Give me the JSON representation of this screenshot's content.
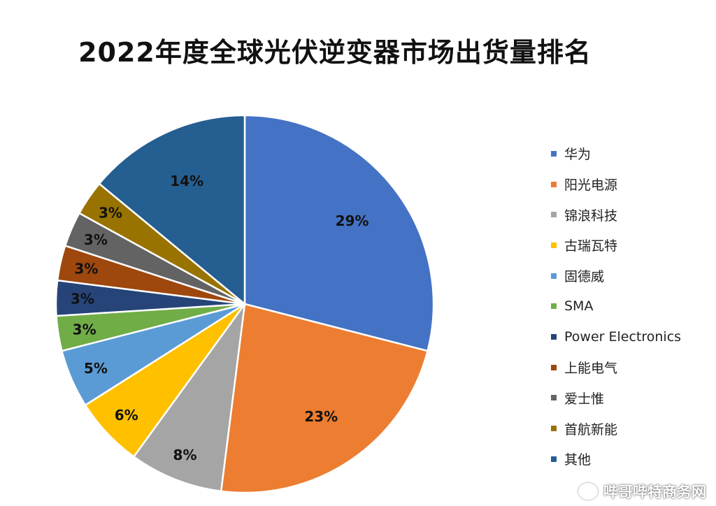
{
  "chart_data": {
    "type": "pie",
    "title": "2022年度全球光伏逆变器市场出货量排名",
    "legend_position": "right",
    "slices": [
      {
        "name": "华为",
        "value": 29,
        "label": "29%",
        "color": "#4472c4"
      },
      {
        "name": "阳光电源",
        "value": 23,
        "label": "23%",
        "color": "#ed7d31"
      },
      {
        "name": "锦浪科技",
        "value": 8,
        "label": "8%",
        "color": "#a5a5a5"
      },
      {
        "name": "古瑞瓦特",
        "value": 6,
        "label": "6%",
        "color": "#ffc000"
      },
      {
        "name": "固德威",
        "value": 5,
        "label": "5%",
        "color": "#5b9bd5"
      },
      {
        "name": "SMA",
        "value": 3,
        "label": "3%",
        "color": "#70ad47"
      },
      {
        "name": "Power Electronics",
        "value": 3,
        "label": "3%",
        "color": "#264478"
      },
      {
        "name": "上能电气",
        "value": 3,
        "label": "3%",
        "color": "#9e480e"
      },
      {
        "name": "爱士惟",
        "value": 3,
        "label": "3%",
        "color": "#636363"
      },
      {
        "name": "首航新能",
        "value": 3,
        "label": "3%",
        "color": "#997300"
      },
      {
        "name": "其他",
        "value": 14,
        "label": "14%",
        "color": "#255e91"
      }
    ]
  },
  "watermark": "哔哥哔特商务网"
}
